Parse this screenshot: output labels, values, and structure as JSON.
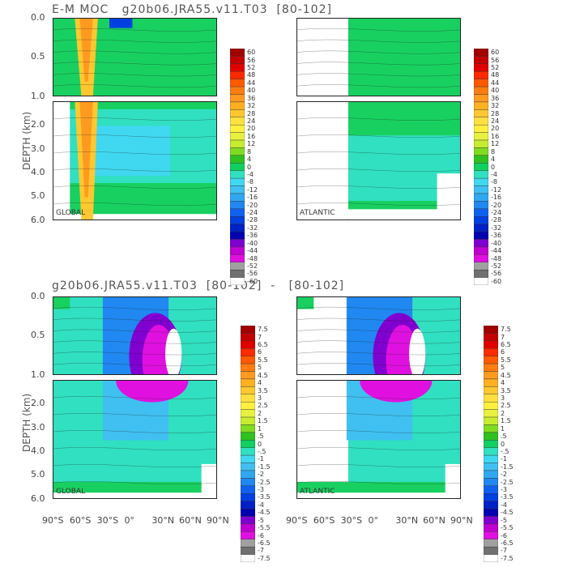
{
  "chart_data": {
    "type": "heatmap",
    "title_top": "E-M MOC   g20b06.JRA55.v11.T03  [80-102]",
    "title_bottom": "g20b06.JRA55.v11.T03  [80-102]  -   [80-102]",
    "ylabel": "DEPTH (km)",
    "y_ticks": [
      "0.0",
      "0.5",
      "1.0",
      "2.0",
      "3.0",
      "4.0",
      "5.0",
      "6.0"
    ],
    "x_ticks": [
      "90°S",
      "60°S",
      "30°S",
      "0°",
      "30°N",
      "60°N",
      "90°N"
    ],
    "panel_labels": [
      "GLOBAL",
      "ATLANTIC",
      "GLOBAL",
      "ATLANTIC"
    ],
    "colorbar_top": {
      "labels": [
        "60",
        "56",
        "52",
        "48",
        "44",
        "40",
        "36",
        "32",
        "28",
        "24",
        "20",
        "16",
        "12",
        "8",
        "4",
        "0",
        "-4",
        "-8",
        "-12",
        "-16",
        "-20",
        "-24",
        "-28",
        "-32",
        "-36",
        "-40",
        "-44",
        "-48",
        "-52",
        "-56",
        "-60"
      ],
      "colors": [
        "#a00000",
        "#c40000",
        "#e00000",
        "#ff2a00",
        "#ff5a00",
        "#ff7d10",
        "#ff9a20",
        "#ffb020",
        "#ffc830",
        "#ffe040",
        "#fff040",
        "#e8f040",
        "#c8ec30",
        "#80dc20",
        "#30c020",
        "#10d060",
        "#30e0c0",
        "#40d8f0",
        "#40c0f0",
        "#30a8f0",
        "#2088f0",
        "#1060f0",
        "#0040e0",
        "#0020c8",
        "#0000b0",
        "#8000d0",
        "#c000d0",
        "#e010e0",
        "#a0a0a0",
        "#707070",
        "#ffffff"
      ]
    },
    "colorbar_bottom": {
      "labels": [
        "7.5",
        "7",
        "6.5",
        "6",
        "5.5",
        "5",
        "4.5",
        "4",
        "3.5",
        "3",
        "2.5",
        "2",
        "1.5",
        "1",
        ".5",
        "0",
        "-.5",
        "-1",
        "-1.5",
        "-2",
        "-2.5",
        "-3",
        "-3.5",
        "-4",
        "-4.5",
        "-5",
        "-5.5",
        "-6",
        "-6.5",
        "-7",
        "-7.5"
      ],
      "colors": [
        "#a00000",
        "#c40000",
        "#e00000",
        "#ff2a00",
        "#ff5a00",
        "#ff7d10",
        "#ff9a20",
        "#ffb020",
        "#ffc830",
        "#ffe040",
        "#fff040",
        "#e8f040",
        "#c8ec30",
        "#80dc20",
        "#30c020",
        "#10d060",
        "#30e0c0",
        "#40d8f0",
        "#40c0f0",
        "#30a8f0",
        "#2088f0",
        "#1060f0",
        "#0040e0",
        "#0020c8",
        "#0000b0",
        "#8000d0",
        "#c000d0",
        "#e010e0",
        "#a0a0a0",
        "#707070",
        "#ffffff"
      ]
    },
    "panels": [
      {
        "name": "GLOBAL",
        "lat_range": [
          -80,
          90
        ],
        "dominant": "green/cyan",
        "feature": "positive Deacon/SH cell near 60°S"
      },
      {
        "name": "ATLANTIC",
        "lat_range": [
          -32,
          90
        ],
        "dominant": "green/cyan"
      },
      {
        "name": "GLOBAL difference",
        "dominant": "cyan/blue",
        "feature": "magenta minimum near 40°N, 0.3-1.7 km"
      },
      {
        "name": "ATLANTIC difference",
        "dominant": "cyan/blue",
        "feature": "magenta minimum near 40°N, 0.3-1.7 km"
      }
    ]
  }
}
